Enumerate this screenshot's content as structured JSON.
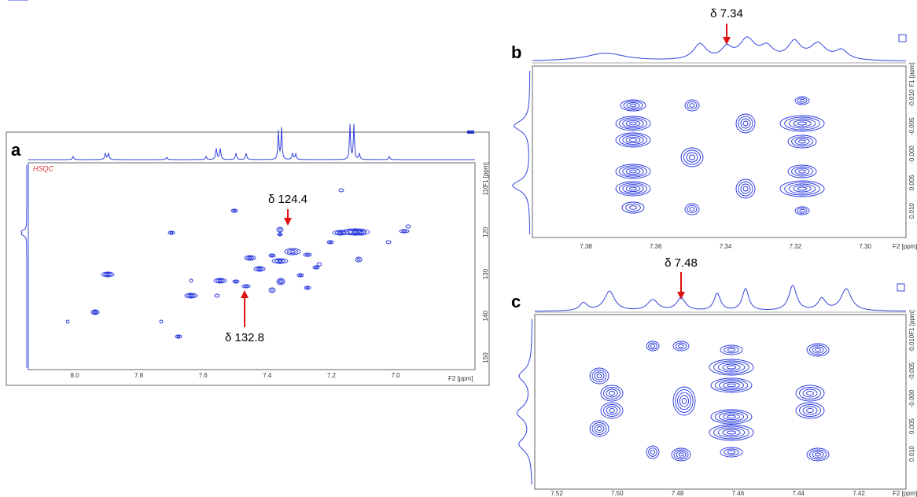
{
  "panels": [
    {
      "label": "a",
      "spectrum": "HSQC",
      "annotations": [
        "δ 124.4",
        "δ 132.8"
      ],
      "xticks": [
        "8.0",
        "7.8",
        "7.6",
        "7.4",
        "7.2",
        "7.0"
      ],
      "xlabel": "F2 [ppm]",
      "yticks": [
        "110",
        "120",
        "130",
        "140",
        "150"
      ],
      "ylabel": "F1 [ppm]"
    },
    {
      "label": "b",
      "annotations": [
        "δ 7.34"
      ],
      "xticks": [
        "7.38",
        "7.36",
        "7.34",
        "7.32",
        "7.30"
      ],
      "xlabel": "F2 [ppm]",
      "yticks": [
        "-0.010",
        "-0.005",
        "-0.000",
        "0.005",
        "0.010"
      ],
      "ylabel": "F1 [ppm]"
    },
    {
      "label": "c",
      "annotations": [
        "δ 7.48"
      ],
      "xticks": [
        "7.52",
        "7.50",
        "7.48",
        "7.46",
        "7.44",
        "7.42"
      ],
      "xlabel": "F2 [ppm]",
      "yticks": [
        "-0.010",
        "-0.005",
        "-0.000",
        "0.005",
        "0.010"
      ],
      "ylabel": "F1 [ppm]"
    }
  ]
}
